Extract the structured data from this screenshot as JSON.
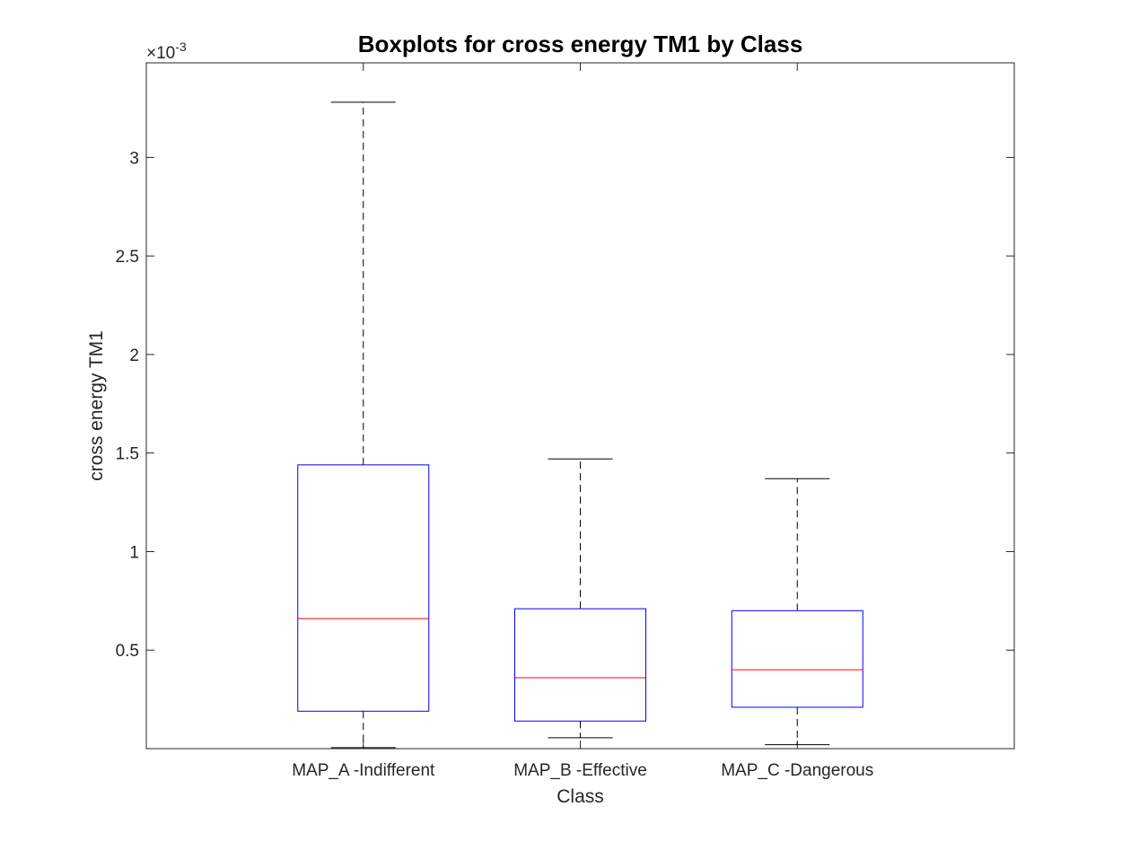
{
  "chart_data": {
    "type": "boxplot",
    "title": "Boxplots for cross energy TM1 by Class",
    "xlabel": "Class",
    "ylabel": "cross energy TM1",
    "y_exponent_label": "×10",
    "y_exponent_power": "-3",
    "y_scale_note": "values in units of 10^-3",
    "ylim": [
      0.0,
      3.48
    ],
    "yticks": [
      0.5,
      1,
      1.5,
      2,
      2.5,
      3
    ],
    "ytick_labels": [
      "0.5",
      "1",
      "1.5",
      "2",
      "2.5",
      "3"
    ],
    "grid": false,
    "categories": [
      "MAP_A -Indifferent",
      "MAP_B -Effective",
      "MAP_C -Dangerous"
    ],
    "boxes": [
      {
        "category": "MAP_A -Indifferent",
        "whisker_low": 0.005,
        "q1": 0.19,
        "median": 0.66,
        "q3": 1.44,
        "whisker_high": 3.28
      },
      {
        "category": "MAP_B -Effective",
        "whisker_low": 0.055,
        "q1": 0.14,
        "median": 0.36,
        "q3": 0.71,
        "whisker_high": 1.47
      },
      {
        "category": "MAP_C -Dangerous",
        "whisker_low": 0.02,
        "q1": 0.21,
        "median": 0.4,
        "q3": 0.7,
        "whisker_high": 1.37
      }
    ],
    "colors": {
      "box": "#0000ff",
      "median": "#ff0000",
      "whisker": "#000000",
      "axis": "#262626"
    }
  }
}
